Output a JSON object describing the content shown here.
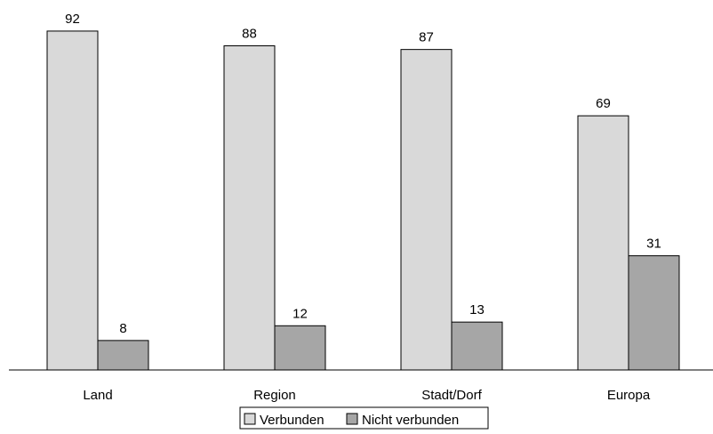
{
  "chart_data": {
    "type": "bar",
    "title": "",
    "xlabel": "",
    "ylabel": "",
    "ylim": [
      0,
      100
    ],
    "grid": false,
    "legend_position": "bottom",
    "categories": [
      "Land",
      "Region",
      "Stadt/Dorf",
      "Europa"
    ],
    "series": [
      {
        "name": "Verbunden",
        "values": [
          92,
          88,
          87,
          69
        ],
        "color": "#d9d9d9"
      },
      {
        "name": "Nicht verbunden",
        "values": [
          8,
          12,
          13,
          31
        ],
        "color": "#a6a6a6"
      }
    ],
    "data_labels": true
  }
}
